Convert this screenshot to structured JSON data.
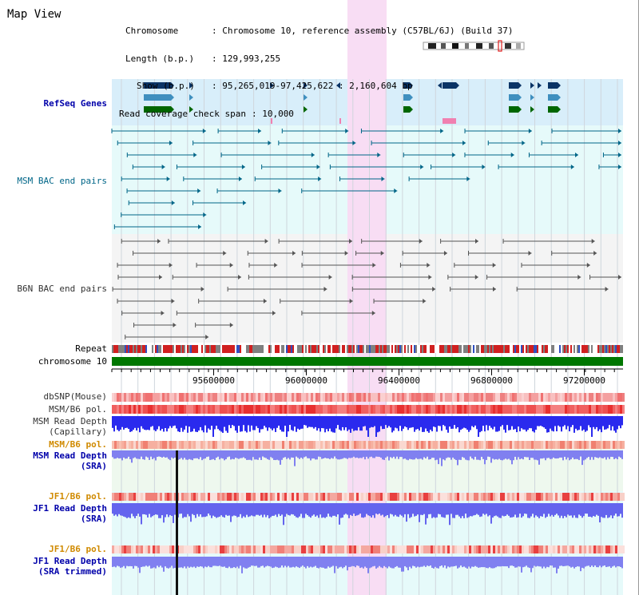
{
  "app": {
    "title": "Map View"
  },
  "info": {
    "chromosome_key": "Chromosome",
    "chromosome_val": ": Chromosome 10, reference assembly (C57BL/6J) (Build 37)",
    "length_key": "Length (b.p.)",
    "length_val": ": 129,993,255",
    "show_key": "Show (b.p.)",
    "show_val": ": 95,265,019-97,425,622 : 2,160,604 bp",
    "coverage_key": "Read coverage check span",
    "coverage_val": ": 10,000"
  },
  "tracks": {
    "refseq": "RefSeq Genes",
    "msm_bac": "MSM BAC end pairs",
    "b6n_bac": "B6N BAC end pairs",
    "repeat": "Repeat",
    "chromosome": "chromosome 10",
    "dbsnp": "dbSNP(Mouse)",
    "msm_b6_pol": "MSM/B6 pol.",
    "msm_depth_cap_1": "MSM Read Depth",
    "msm_depth_cap_2": "(Capillary)",
    "msm_b6_pol2": "MSM/B6 pol.",
    "msm_depth_sra_1": "MSM Read Depth",
    "msm_depth_sra_2": "(SRA)",
    "jf1_b6_pol": "JF1/B6 pol.",
    "jf1_depth_sra_1": "JF1 Read Depth",
    "jf1_depth_sra_2": "(SRA)",
    "jf1_b6_pol2": "JF1/B6 pol.",
    "jf1_depth_trim_1": "JF1 Read Depth",
    "jf1_depth_trim_2": "(SRA trimmed)"
  },
  "axis": {
    "ticks": [
      "95600000",
      "96000000",
      "96400000",
      "96800000",
      "97200000"
    ]
  },
  "colors": {
    "refseq_bg": "#d8eefa",
    "msm_bg": "#e6fafa",
    "b6n_bg": "#f4f4f4",
    "highlight": "#f8ddf4",
    "gene_dark": "#0a3466",
    "gene_mid": "#3f8fbf",
    "gene_green": "#006600",
    "msm_line": "#006688",
    "b6n_line": "#555555",
    "chromosome_bar": "#007700",
    "depth_blue": "#2a2aee",
    "depth_light": "#8080f0"
  }
}
